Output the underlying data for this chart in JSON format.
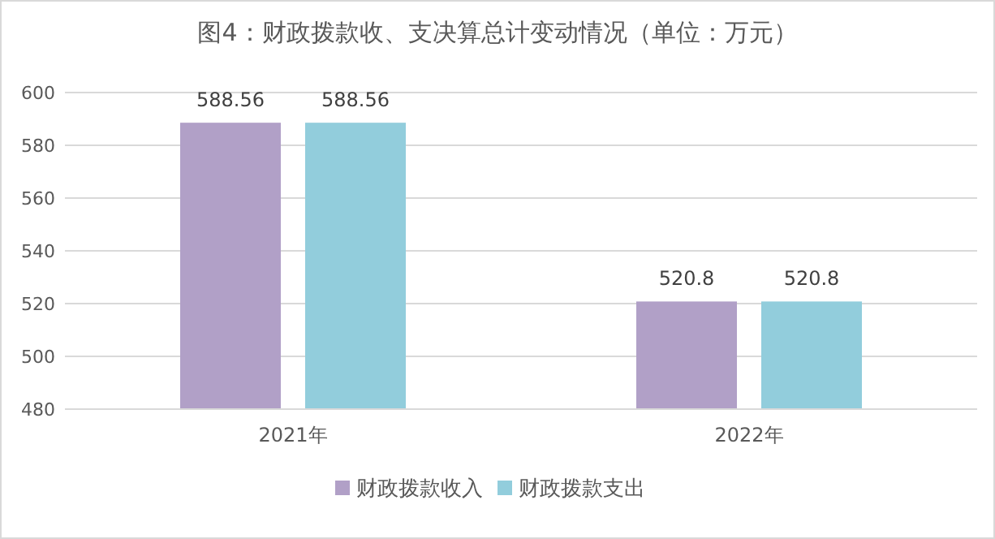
{
  "chart_data": {
    "type": "bar",
    "title": "图4：财政拨款收、支决算总计变动情况（单位：万元）",
    "categories": [
      "2021年",
      "2022年"
    ],
    "series": [
      {
        "name": "财政拨款收入",
        "color": "#b1a0c7",
        "values": [
          588.56,
          520.8
        ]
      },
      {
        "name": "财政拨款支出",
        "color": "#92cddc",
        "values": [
          588.56,
          520.8
        ]
      }
    ],
    "ylim": [
      480,
      600
    ],
    "yticks": [
      480,
      500,
      520,
      540,
      560,
      580,
      600
    ],
    "grid": "y",
    "legend": "bottom",
    "data_labels": true
  }
}
